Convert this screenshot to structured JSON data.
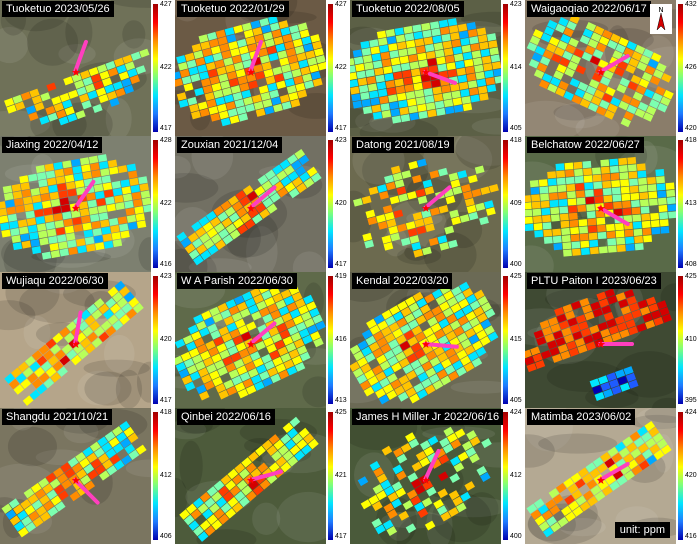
{
  "panels": [
    {
      "title": "Tuoketuo 2023/05/26",
      "ticks": [
        "427",
        "422",
        "417"
      ],
      "bg": "#6f7158",
      "variant": "fan"
    },
    {
      "title": "Tuoketuo 2022/01/29",
      "ticks": [
        "427",
        "422",
        "417"
      ],
      "bg": "#6b5a45",
      "variant": "blob"
    },
    {
      "title": "Tuoketuo 2022/08/05",
      "ticks": [
        "423",
        "414",
        "405"
      ],
      "bg": "#5c6046",
      "variant": "disc"
    },
    {
      "title": "Waigaoqiao 2022/06/17",
      "ticks": [
        "432",
        "426",
        "420"
      ],
      "bg": "#8a7d6a",
      "variant": "wedge"
    },
    {
      "title": "Jiaxing 2022/04/12",
      "ticks": [
        "428",
        "422",
        "416"
      ],
      "bg": "#7d8070",
      "variant": "blob"
    },
    {
      "title": "Zouxian 2021/12/04",
      "ticks": [
        "423",
        "420",
        "417"
      ],
      "bg": "#727063",
      "variant": "strip"
    },
    {
      "title": "Datong 2021/08/19",
      "ticks": [
        "418",
        "409",
        "400"
      ],
      "bg": "#6c6a4f",
      "variant": "scatter"
    },
    {
      "title": "Belchatow 2022/06/27",
      "ticks": [
        "418",
        "413",
        "408"
      ],
      "bg": "#596a48",
      "variant": "blob"
    },
    {
      "title": "Wujiaqu 2022/06/30",
      "ticks": [
        "423",
        "420",
        "417"
      ],
      "bg": "#b5a58a",
      "variant": "strip"
    },
    {
      "title": "W A Parish 2022/06/30",
      "ticks": [
        "419",
        "416",
        "413"
      ],
      "bg": "#5f6a4a",
      "variant": "blob"
    },
    {
      "title": "Kendal 2022/03/20",
      "ticks": [
        "425",
        "415",
        "405"
      ],
      "bg": "#6b6a55",
      "variant": "blob"
    },
    {
      "title": "PLTU Paiton I 2023/06/23",
      "ticks": [
        "425",
        "410",
        "395"
      ],
      "bg": "#3f4a33",
      "variant": "hot"
    },
    {
      "title": "Shangdu 2021/10/21",
      "ticks": [
        "418",
        "412",
        "406"
      ],
      "bg": "#7a7560",
      "variant": "strip"
    },
    {
      "title": "Qinbei 2022/06/16",
      "ticks": [
        "425",
        "421",
        "417"
      ],
      "bg": "#4d5b3b",
      "variant": "strip"
    },
    {
      "title": "James H Miller Jr 2022/06/16",
      "ticks": [
        "424",
        "412",
        "400"
      ],
      "bg": "#4a5a3a",
      "variant": "scatter"
    },
    {
      "title": "Matimba 2023/06/02",
      "ticks": [
        "424",
        "420",
        "416"
      ],
      "bg": "#b4a993",
      "variant": "strip"
    }
  ],
  "unit_label": "unit: ppm",
  "north_icon": "north-arrow-icon",
  "colors": {
    "high": "#d7191c",
    "mid": "#ffff00",
    "low": "#0000b0",
    "arrow": "#ff3fbf",
    "source_marker": "#ff0000"
  }
}
